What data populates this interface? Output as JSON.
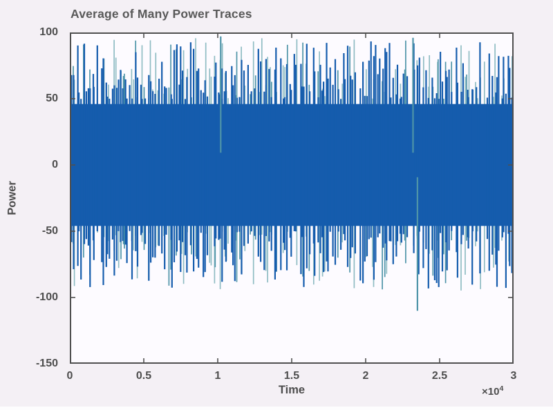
{
  "window": {
    "background": "#f4f0f5"
  },
  "styles": {
    "axis_color": "#4f4f4f",
    "text_color": "#4d4d4d",
    "title_color": "#595959",
    "plot_bg": "#fdfbff"
  },
  "chart_data": {
    "type": "line",
    "title": "Average of Many Power Traces",
    "xlabel": "Time",
    "ylabel": "Power",
    "xlim": [
      0,
      30000
    ],
    "ylim": [
      -150,
      100
    ],
    "grid": false,
    "legend": null,
    "x_exponent": {
      "base": "×10",
      "exp": "4"
    },
    "x_ticks": [
      {
        "value": 0,
        "label": "0"
      },
      {
        "value": 5000,
        "label": "0.5"
      },
      {
        "value": 10000,
        "label": "1"
      },
      {
        "value": 15000,
        "label": "1.5"
      },
      {
        "value": 20000,
        "label": "2"
      },
      {
        "value": 25000,
        "label": "2.5"
      },
      {
        "value": 30000,
        "label": "3"
      }
    ],
    "y_ticks": [
      {
        "value": 100,
        "label": "100"
      },
      {
        "value": 50,
        "label": "50"
      },
      {
        "value": 0,
        "label": "0"
      },
      {
        "value": -50,
        "label": "-50"
      },
      {
        "value": -100,
        "label": "-100"
      },
      {
        "value": -150,
        "label": "-150"
      }
    ],
    "series": [
      {
        "name": "averaged-power-trace",
        "description": "dense zero-mean noise: solid band about ±46 with frequent narrow spikes reaching about ±95",
        "body_amplitude": 46,
        "typical_spike_max": 95,
        "color": "#155cad"
      },
      {
        "name": "background-trace",
        "description": "paler teal trace visible between and behind the blue spikes",
        "colors": [
          "#8fbcc3",
          "#4e94a8"
        ]
      }
    ],
    "notable_extremes": [
      {
        "x": 23500,
        "y": -110
      },
      {
        "x": 23200,
        "y": 96
      },
      {
        "x": 10200,
        "y": 97
      }
    ],
    "render": {
      "seed": 987654321,
      "columns": 205,
      "teal_prob": 0.52,
      "blue_prob": 0.84,
      "spike_min": 4,
      "spike_range": 46,
      "spike_power": 1.55,
      "line_width_blue": 2.2,
      "line_width_teal": 1.7,
      "tick_len": 8
    }
  }
}
